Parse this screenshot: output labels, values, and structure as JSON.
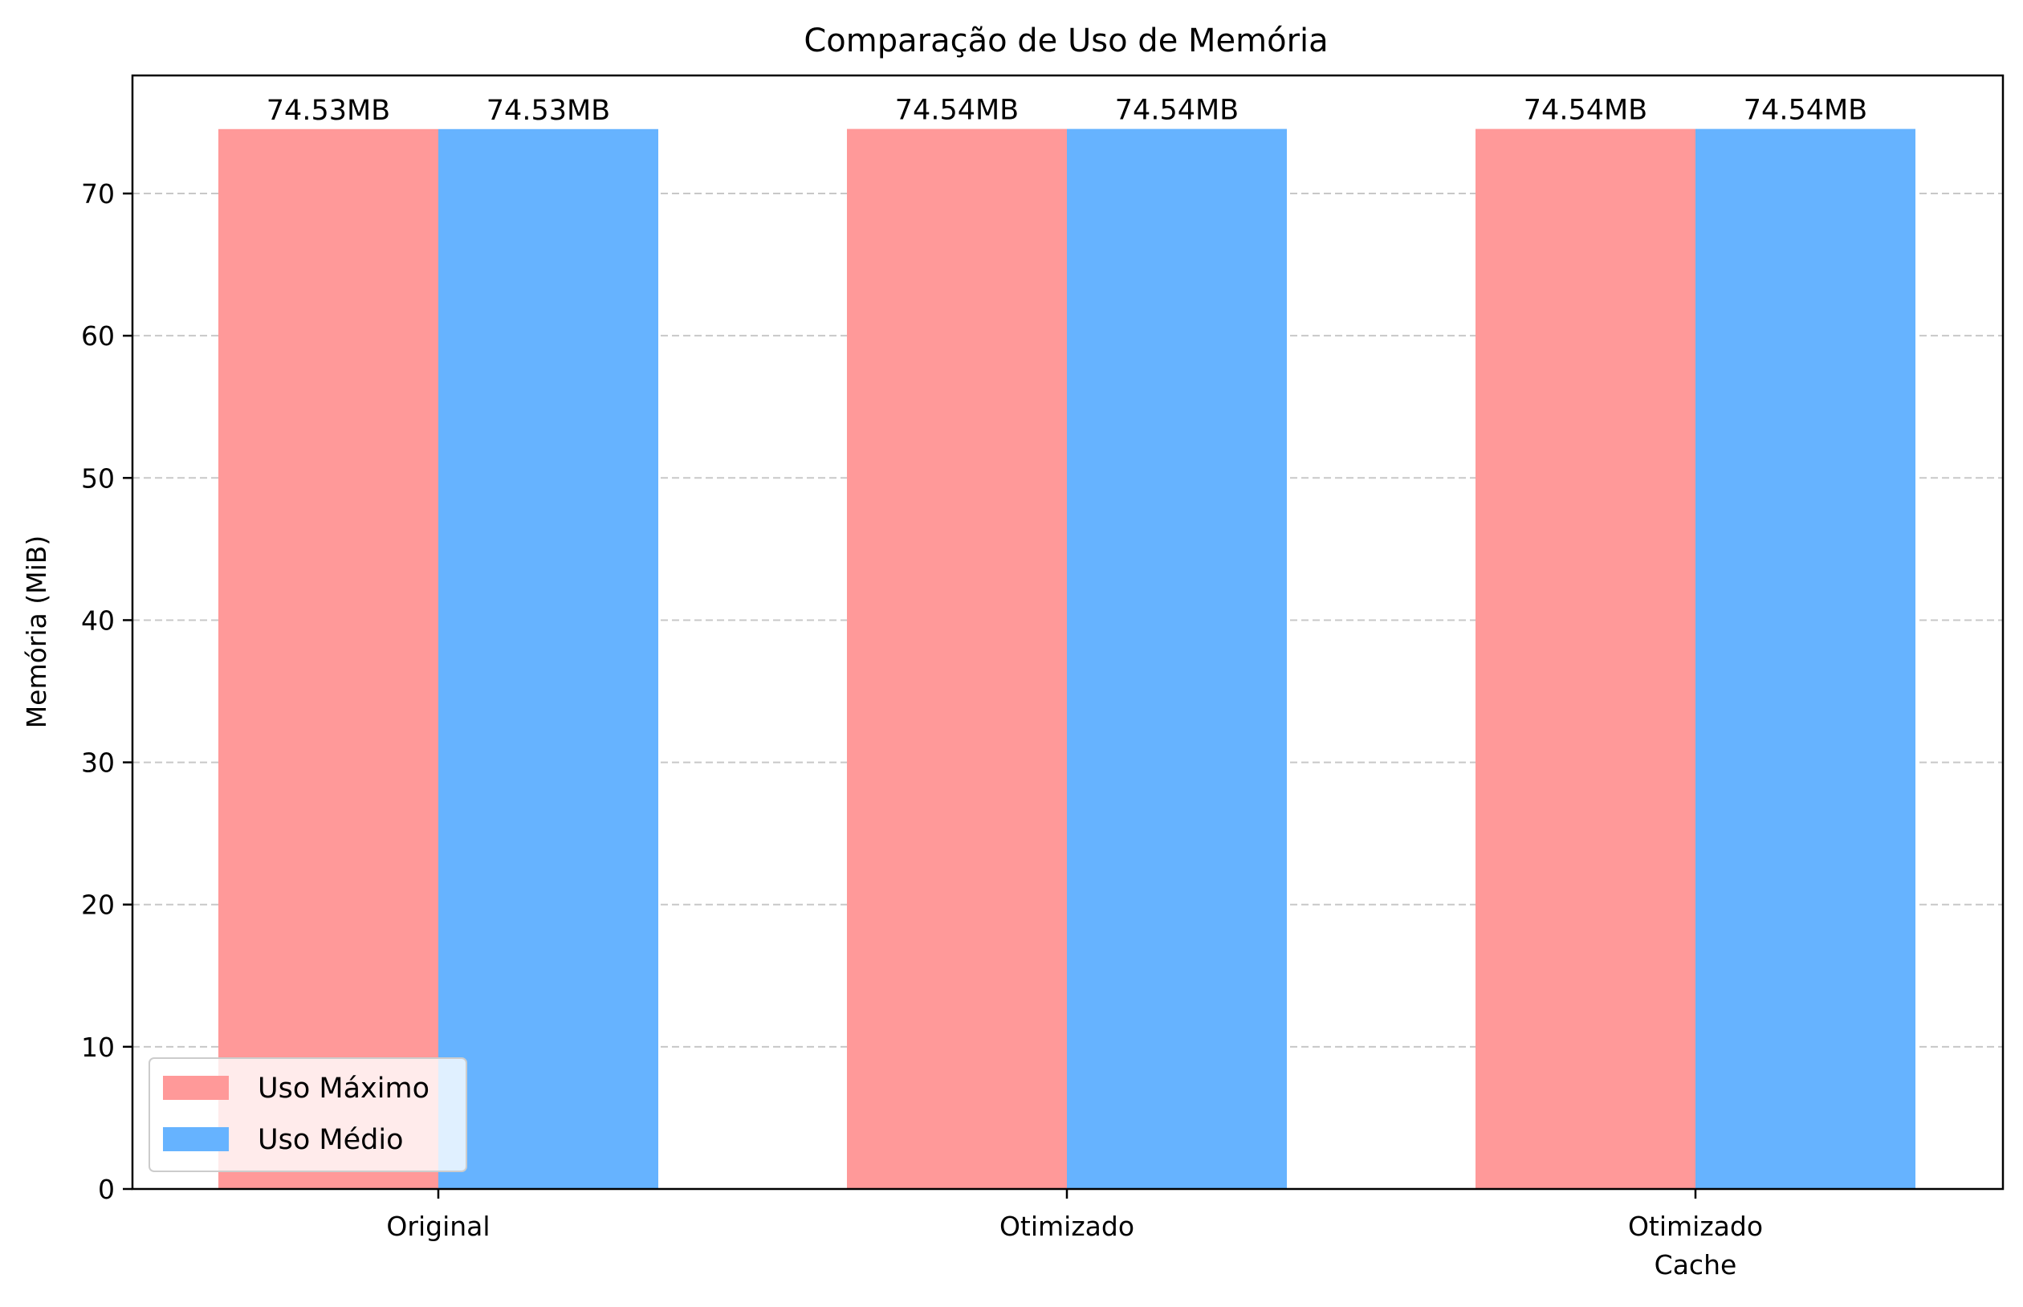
{
  "chart_data": {
    "type": "bar",
    "title": "Comparação de Uso de Memória",
    "xlabel": "",
    "ylabel": "Memória (MiB)",
    "categories": [
      [
        "Original"
      ],
      [
        "Otimizado"
      ],
      [
        "Otimizado",
        "Cache"
      ]
    ],
    "series": [
      {
        "name": "Uso Máximo",
        "color": "#ff9999",
        "values": [
          74.53,
          74.54,
          74.54
        ],
        "labels": [
          "74.53MB",
          "74.54MB",
          "74.54MB"
        ]
      },
      {
        "name": "Uso Médio",
        "color": "#66b3ff",
        "values": [
          74.53,
          74.54,
          74.54
        ],
        "labels": [
          "74.53MB",
          "74.54MB",
          "74.54MB"
        ]
      }
    ],
    "ylim": [
      0,
      78.3
    ],
    "yticks": [
      0,
      10,
      20,
      30,
      40,
      50,
      60,
      70
    ],
    "grid": {
      "axis": "y",
      "style": "dashed",
      "color": "#c8c8c8"
    },
    "legend": {
      "position": "lower-left"
    }
  }
}
